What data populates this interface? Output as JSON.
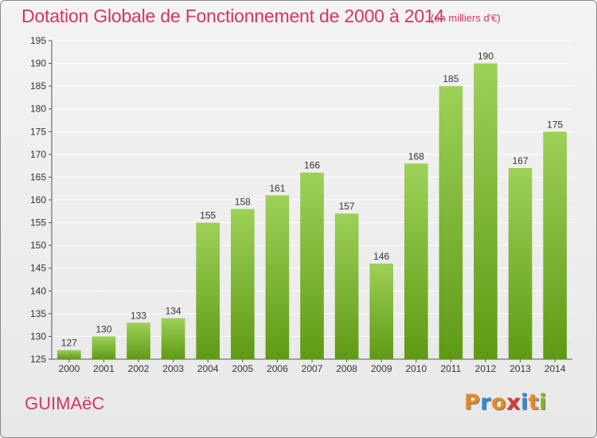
{
  "title": "Dotation Globale de Fonctionnement de 2000 à 2014",
  "unit_note": "(en milliers d'€)",
  "commune": "GUIMAëC",
  "logo": {
    "text": "Proxiti",
    "colors": [
      "#e8891e",
      "#2b8ad6",
      "#e8891e",
      "#d63a3a",
      "#2b8ad6",
      "#e8891e",
      "#7cb820"
    ]
  },
  "colors": {
    "bar_light": "#9dd058",
    "bar_dark": "#5f9a14",
    "grid": "#ffffff",
    "axis": "#555555",
    "label": "#333333",
    "accent": "#d2385d"
  },
  "chart_data": {
    "type": "bar",
    "title": "Dotation Globale de Fonctionnement de 2000 à 2014",
    "subtitle": "(en milliers d'€)",
    "categories": [
      "2000",
      "2001",
      "2002",
      "2003",
      "2004",
      "2005",
      "2006",
      "2007",
      "2008",
      "2009",
      "2010",
      "2011",
      "2012",
      "2013",
      "2014"
    ],
    "values": [
      127,
      130,
      133,
      134,
      155,
      158,
      161,
      166,
      157,
      146,
      168,
      185,
      190,
      167,
      175
    ],
    "ylim": [
      125,
      195
    ],
    "yticks": [
      125,
      130,
      135,
      140,
      145,
      150,
      155,
      160,
      165,
      170,
      175,
      180,
      185,
      190,
      195
    ],
    "xlabel": "",
    "ylabel": "",
    "grid": true,
    "data_labels": true,
    "legend": "none"
  }
}
